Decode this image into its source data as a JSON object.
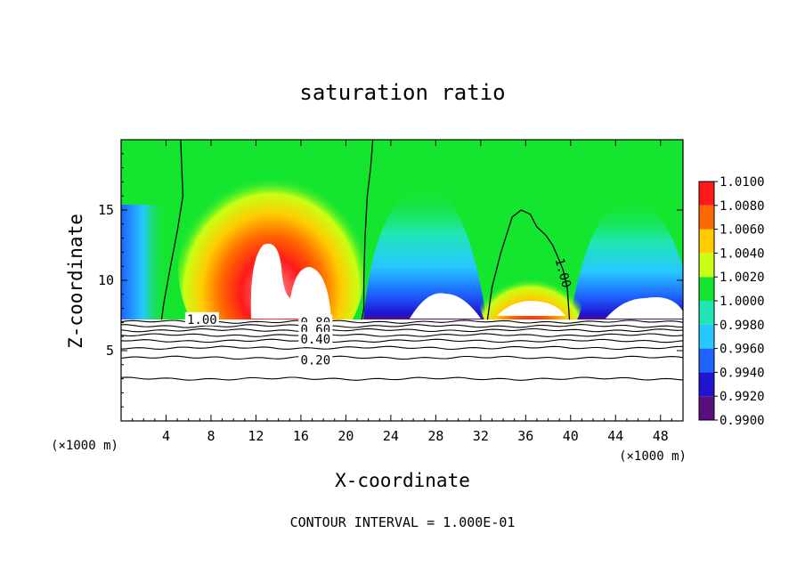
{
  "chart_data": {
    "type": "contour",
    "title": "saturation ratio",
    "xlabel": "X-coordinate",
    "ylabel": "Z-coordinate",
    "x_unit": "(×1000 m)",
    "y_unit": "(×1000 m)",
    "xlim": [
      0,
      50
    ],
    "ylim": [
      0,
      20
    ],
    "x_ticks": [
      4,
      8,
      12,
      16,
      20,
      24,
      28,
      32,
      36,
      40,
      44,
      48
    ],
    "y_ticks": [
      5,
      10,
      15
    ],
    "footer": "CONTOUR INTERVAL = 1.000E-01",
    "colorbar": {
      "levels": [
        "0.9900",
        "0.9920",
        "0.9940",
        "0.9960",
        "0.9980",
        "1.0000",
        "1.0020",
        "1.0040",
        "1.0060",
        "1.0080",
        "1.0100"
      ],
      "colors": [
        "#5a0f7f",
        "#1e14d2",
        "#1e64ff",
        "#26c8ff",
        "#20e6b4",
        "#14e630",
        "#c8ff14",
        "#ffcc00",
        "#ff6a00",
        "#ff1a1a",
        "#ff9aa6"
      ]
    },
    "contour_labels": [
      {
        "text": "1.00",
        "x": 7.2,
        "z": 7.1
      },
      {
        "text": "0.80",
        "x": 17.3,
        "z": 6.9
      },
      {
        "text": "0.60",
        "x": 17.3,
        "z": 6.4
      },
      {
        "text": "0.40",
        "x": 17.3,
        "z": 5.7
      },
      {
        "text": "0.20",
        "x": 17.3,
        "z": 4.2
      },
      {
        "text": "1.00",
        "x": 39.2,
        "z": 10.5
      }
    ],
    "unity_contours": [
      [
        [
          5.3,
          20
        ],
        [
          5.4,
          18
        ],
        [
          5.5,
          16
        ],
        [
          5.0,
          13.5
        ],
        [
          4.4,
          11
        ],
        [
          3.8,
          8.4
        ],
        [
          3.6,
          7.2
        ]
      ],
      [
        [
          22.4,
          20
        ],
        [
          22.2,
          18
        ],
        [
          21.9,
          16
        ],
        [
          21.7,
          13
        ],
        [
          21.6,
          10
        ],
        [
          21.6,
          8
        ],
        [
          21.4,
          7.2
        ]
      ],
      [
        [
          32.6,
          7.2
        ],
        [
          33.0,
          9.5
        ],
        [
          33.8,
          12
        ],
        [
          34.8,
          14.5
        ],
        [
          35.6,
          15
        ],
        [
          36.4,
          14.7
        ],
        [
          37.0,
          13.8
        ],
        [
          37.8,
          13.2
        ],
        [
          38.4,
          12.5
        ],
        [
          38.9,
          11.6
        ],
        [
          39.3,
          10.8
        ],
        [
          39.7,
          9.5
        ],
        [
          39.9,
          7.2
        ]
      ]
    ],
    "stable_contours": [
      7.05,
      6.75,
      6.45,
      6.1,
      5.7,
      5.2,
      4.5,
      3.0
    ]
  }
}
